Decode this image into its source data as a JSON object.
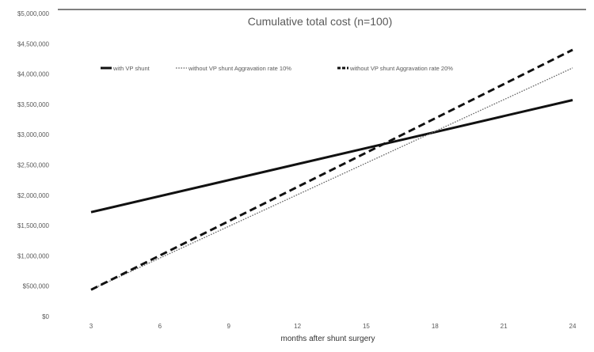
{
  "chart_data": {
    "type": "line",
    "title": "Cumulative total cost (n=100)",
    "xlabel": "months after shunt surgery",
    "ylabel": "",
    "x": [
      3,
      24
    ],
    "x_ticks": [
      "3",
      "6",
      "9",
      "12",
      "15",
      "18",
      "21",
      "24"
    ],
    "xlim": [
      3,
      24
    ],
    "y_ticks": [
      "$0",
      "$500,000",
      "$1,000,000",
      "$1,500,000",
      "$2,000,000",
      "$2,500,000",
      "$3,000,000",
      "$3,500,000",
      "$4,000,000",
      "$4,500,000",
      "$5,000,000"
    ],
    "ylim": [
      0,
      5000000
    ],
    "grid": false,
    "legend_position": "top",
    "series": [
      {
        "name": "with VP shunt",
        "values": [
          1720000,
          3570000
        ],
        "color": "#111111",
        "style": "solid"
      },
      {
        "name": "without VP shunt Aggravation rate 10%",
        "values": [
          440000,
          4100000
        ],
        "color": "#666666",
        "style": "dotted"
      },
      {
        "name": "without VP shunt Aggravation rate 20%",
        "values": [
          440000,
          4400000
        ],
        "color": "#111111",
        "style": "dashed"
      }
    ]
  }
}
